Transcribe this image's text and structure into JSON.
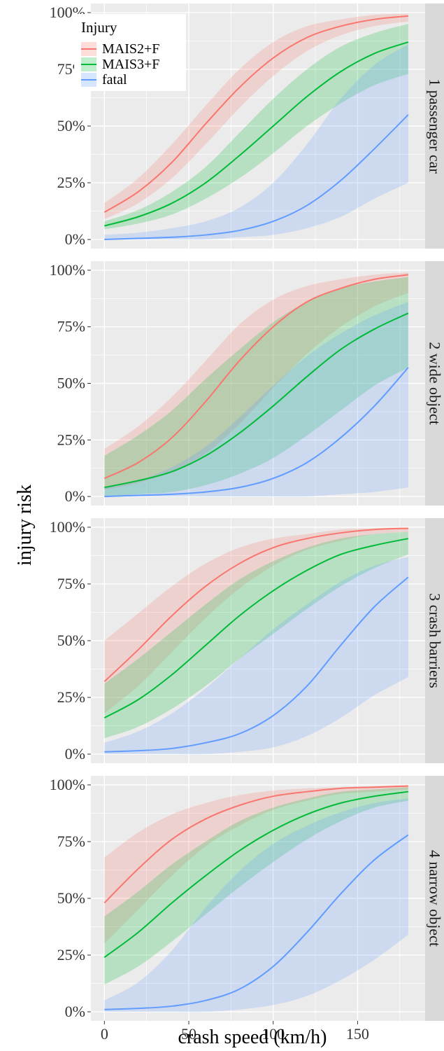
{
  "chart_data": {
    "type": "area",
    "xlabel": "crash speed (km/h)",
    "ylabel": "injury risk",
    "xlim": [
      -8,
      190
    ],
    "ylim": [
      -0.04,
      1.04
    ],
    "x_ticks": [
      0,
      50,
      100,
      150
    ],
    "x_tick_labels": [
      "0",
      "50",
      "100",
      "150"
    ],
    "y_ticks": [
      0,
      0.25,
      0.5,
      0.75,
      1.0
    ],
    "y_tick_labels": [
      "0%",
      "25%",
      "50%",
      "75%",
      "100%"
    ],
    "grid": true,
    "legend": {
      "title": "Injury",
      "placement": "top-left",
      "entries": [
        "MAIS2+F",
        "MAIS3+F",
        "fatal"
      ]
    },
    "colors": {
      "MAIS2+F": "#F8766D",
      "MAIS3+F": "#00BA38",
      "fatal": "#619CFF"
    },
    "x": [
      0,
      20,
      40,
      60,
      80,
      100,
      120,
      140,
      160,
      180
    ],
    "panels": [
      {
        "strip": "1 passenger car",
        "series": [
          {
            "name": "MAIS2+F",
            "values": [
              0.12,
              0.21,
              0.34,
              0.51,
              0.67,
              0.8,
              0.89,
              0.94,
              0.97,
              0.985
            ],
            "lower": [
              0.09,
              0.16,
              0.27,
              0.42,
              0.58,
              0.72,
              0.83,
              0.9,
              0.94,
              0.96
            ],
            "upper": [
              0.16,
              0.27,
              0.42,
              0.59,
              0.75,
              0.87,
              0.94,
              0.97,
              0.99,
              0.995
            ]
          },
          {
            "name": "MAIS3+F",
            "values": [
              0.06,
              0.1,
              0.16,
              0.25,
              0.37,
              0.5,
              0.63,
              0.74,
              0.82,
              0.87
            ],
            "lower": [
              0.045,
              0.07,
              0.11,
              0.18,
              0.27,
              0.38,
              0.5,
              0.6,
              0.68,
              0.73
            ],
            "upper": [
              0.08,
              0.13,
              0.21,
              0.32,
              0.47,
              0.62,
              0.75,
              0.85,
              0.91,
              0.95
            ]
          },
          {
            "name": "fatal",
            "values": [
              0.0,
              0.005,
              0.01,
              0.02,
              0.04,
              0.08,
              0.15,
              0.26,
              0.4,
              0.55
            ],
            "lower": [
              0.0,
              0.0,
              0.0,
              0.0,
              0.01,
              0.02,
              0.05,
              0.1,
              0.18,
              0.25
            ],
            "upper": [
              0.02,
              0.03,
              0.05,
              0.08,
              0.14,
              0.25,
              0.42,
              0.62,
              0.77,
              0.86
            ]
          }
        ]
      },
      {
        "strip": "2 wide object",
        "series": [
          {
            "name": "MAIS2+F",
            "values": [
              0.08,
              0.15,
              0.26,
              0.42,
              0.6,
              0.75,
              0.86,
              0.92,
              0.96,
              0.98
            ],
            "lower": [
              0.03,
              0.06,
              0.11,
              0.19,
              0.32,
              0.48,
              0.63,
              0.75,
              0.84,
              0.9
            ],
            "upper": [
              0.21,
              0.31,
              0.44,
              0.6,
              0.76,
              0.87,
              0.93,
              0.96,
              0.98,
              0.99
            ]
          },
          {
            "name": "MAIS3+F",
            "values": [
              0.04,
              0.07,
              0.11,
              0.18,
              0.28,
              0.4,
              0.53,
              0.65,
              0.74,
              0.81
            ],
            "lower": [
              0.0,
              0.01,
              0.02,
              0.05,
              0.1,
              0.17,
              0.27,
              0.38,
              0.49,
              0.57
            ],
            "upper": [
              0.18,
              0.27,
              0.38,
              0.52,
              0.65,
              0.77,
              0.86,
              0.92,
              0.95,
              0.97
            ]
          },
          {
            "name": "fatal",
            "values": [
              0.0,
              0.005,
              0.01,
              0.02,
              0.04,
              0.08,
              0.15,
              0.26,
              0.4,
              0.57
            ],
            "lower": [
              0.0,
              0.0,
              0.0,
              0.0,
              0.0,
              0.0,
              0.0,
              0.01,
              0.02,
              0.04
            ],
            "upper": [
              0.04,
              0.07,
              0.13,
              0.22,
              0.35,
              0.49,
              0.62,
              0.72,
              0.8,
              0.86
            ]
          }
        ]
      },
      {
        "strip": "3 crash barriers",
        "series": [
          {
            "name": "MAIS2+F",
            "values": [
              0.32,
              0.46,
              0.61,
              0.74,
              0.84,
              0.91,
              0.95,
              0.975,
              0.99,
              0.995
            ],
            "lower": [
              0.18,
              0.3,
              0.45,
              0.6,
              0.73,
              0.83,
              0.9,
              0.94,
              0.97,
              0.98
            ],
            "upper": [
              0.5,
              0.62,
              0.74,
              0.84,
              0.91,
              0.95,
              0.97,
              0.99,
              0.995,
              1.0
            ]
          },
          {
            "name": "MAIS3+F",
            "values": [
              0.16,
              0.24,
              0.35,
              0.48,
              0.61,
              0.72,
              0.81,
              0.88,
              0.92,
              0.95
            ],
            "lower": [
              0.07,
              0.12,
              0.2,
              0.3,
              0.42,
              0.53,
              0.64,
              0.74,
              0.82,
              0.88
            ],
            "upper": [
              0.31,
              0.42,
              0.54,
              0.66,
              0.77,
              0.85,
              0.91,
              0.95,
              0.97,
              0.98
            ]
          },
          {
            "name": "fatal",
            "values": [
              0.01,
              0.015,
              0.025,
              0.05,
              0.09,
              0.17,
              0.3,
              0.48,
              0.65,
              0.78
            ],
            "lower": [
              0.0,
              0.0,
              0.0,
              0.0,
              0.01,
              0.03,
              0.08,
              0.16,
              0.26,
              0.34
            ],
            "upper": [
              0.05,
              0.1,
              0.18,
              0.29,
              0.42,
              0.55,
              0.66,
              0.76,
              0.83,
              0.87
            ]
          }
        ]
      },
      {
        "strip": "4 narrow object",
        "series": [
          {
            "name": "MAIS2+F",
            "values": [
              0.48,
              0.63,
              0.76,
              0.85,
              0.91,
              0.95,
              0.97,
              0.985,
              0.99,
              0.995
            ],
            "lower": [
              0.3,
              0.45,
              0.6,
              0.73,
              0.82,
              0.89,
              0.93,
              0.96,
              0.97,
              0.98
            ],
            "upper": [
              0.68,
              0.79,
              0.87,
              0.92,
              0.955,
              0.975,
              0.985,
              0.99,
              0.995,
              1.0
            ]
          },
          {
            "name": "MAIS3+F",
            "values": [
              0.24,
              0.35,
              0.48,
              0.6,
              0.71,
              0.8,
              0.87,
              0.92,
              0.95,
              0.97
            ],
            "lower": [
              0.12,
              0.2,
              0.31,
              0.43,
              0.55,
              0.66,
              0.76,
              0.84,
              0.9,
              0.93
            ],
            "upper": [
              0.42,
              0.53,
              0.65,
              0.75,
              0.84,
              0.9,
              0.94,
              0.97,
              0.98,
              0.99
            ]
          },
          {
            "name": "fatal",
            "values": [
              0.01,
              0.015,
              0.025,
              0.05,
              0.1,
              0.2,
              0.35,
              0.52,
              0.67,
              0.78
            ],
            "lower": [
              0.0,
              0.0,
              0.0,
              0.0,
              0.01,
              0.03,
              0.07,
              0.14,
              0.23,
              0.34
            ],
            "upper": [
              0.05,
              0.13,
              0.27,
              0.46,
              0.62,
              0.74,
              0.82,
              0.88,
              0.92,
              0.94
            ]
          }
        ]
      }
    ]
  }
}
